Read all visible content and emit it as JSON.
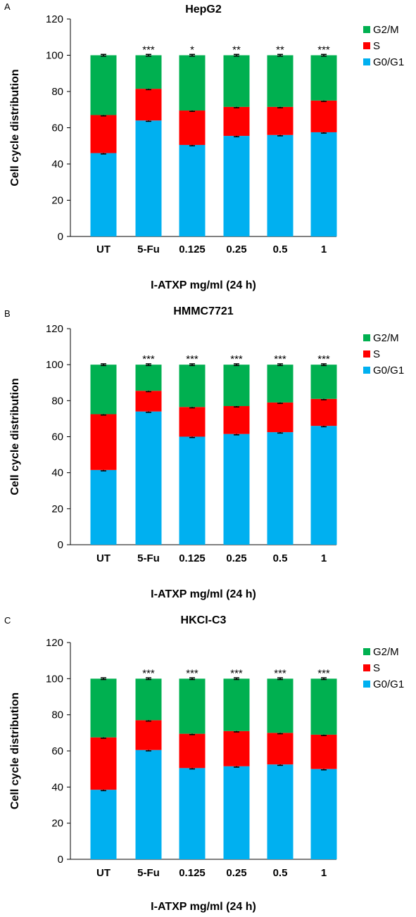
{
  "colors": {
    "G2/M": "#00b050",
    "S": "#ff0000",
    "G0/G1": "#00b0f0",
    "axis": "#000000",
    "errorbar": "#000000"
  },
  "chart_data": [
    {
      "type": "bar",
      "stacked": true,
      "panel": "A",
      "title": "HepG2",
      "xlabel": "I-ATXP mg/ml (24 h)",
      "ylabel": "Cell cycle distribution",
      "ylim": [
        0,
        120
      ],
      "yticks": [
        0,
        20,
        40,
        60,
        80,
        100,
        120
      ],
      "grid": false,
      "legend_position": "right",
      "categories": [
        "UT",
        "5-Fu",
        "0.125",
        "0.25",
        "0.5",
        "1"
      ],
      "significance": [
        "",
        "***",
        "*",
        "**",
        "**",
        "***"
      ],
      "series": [
        {
          "name": "G0/G1",
          "values": [
            46,
            64,
            50.5,
            55.5,
            56,
            57.5
          ]
        },
        {
          "name": "S",
          "values": [
            21,
            17.5,
            19,
            16,
            15.5,
            17.5
          ]
        },
        {
          "name": "G2/M",
          "values": [
            33,
            18.5,
            30.5,
            28.5,
            28.5,
            25
          ]
        }
      ]
    },
    {
      "type": "bar",
      "stacked": true,
      "panel": "B",
      "title": "HMMC7721",
      "xlabel": "I-ATXP mg/ml (24 h)",
      "ylabel": "Cell cycle distribution",
      "ylim": [
        0,
        120
      ],
      "yticks": [
        0,
        20,
        40,
        60,
        80,
        100,
        120
      ],
      "grid": false,
      "legend_position": "right",
      "categories": [
        "UT",
        "5-Fu",
        "0.125",
        "0.25",
        "0.5",
        "1"
      ],
      "significance": [
        "",
        "***",
        "***",
        "***",
        "***",
        "***"
      ],
      "series": [
        {
          "name": "G0/G1",
          "values": [
            41.5,
            74,
            60,
            61.5,
            62.5,
            66
          ]
        },
        {
          "name": "S",
          "values": [
            31,
            11.5,
            16.5,
            15.5,
            16.5,
            15
          ]
        },
        {
          "name": "G2/M",
          "values": [
            27.5,
            14.5,
            23.5,
            23,
            21,
            19
          ]
        }
      ]
    },
    {
      "type": "bar",
      "stacked": true,
      "panel": "C",
      "title": "HKCI-C3",
      "xlabel": "I-ATXP mg/ml (24 h)",
      "ylabel": "Cell cycle distribution",
      "ylim": [
        0,
        120
      ],
      "yticks": [
        0,
        20,
        40,
        60,
        80,
        100,
        120
      ],
      "grid": false,
      "legend_position": "right",
      "categories": [
        "UT",
        "5-Fu",
        "0.125",
        "0.25",
        "0.5",
        "1"
      ],
      "significance": [
        "",
        "***",
        "***",
        "***",
        "***",
        "***"
      ],
      "series": [
        {
          "name": "G0/G1",
          "values": [
            38.5,
            60.5,
            50.5,
            51.5,
            52.5,
            50
          ]
        },
        {
          "name": "S",
          "values": [
            29,
            16.5,
            19,
            19.5,
            17.5,
            19
          ]
        },
        {
          "name": "G2/M",
          "values": [
            32.5,
            23,
            30.5,
            29,
            30,
            31
          ]
        }
      ]
    }
  ]
}
